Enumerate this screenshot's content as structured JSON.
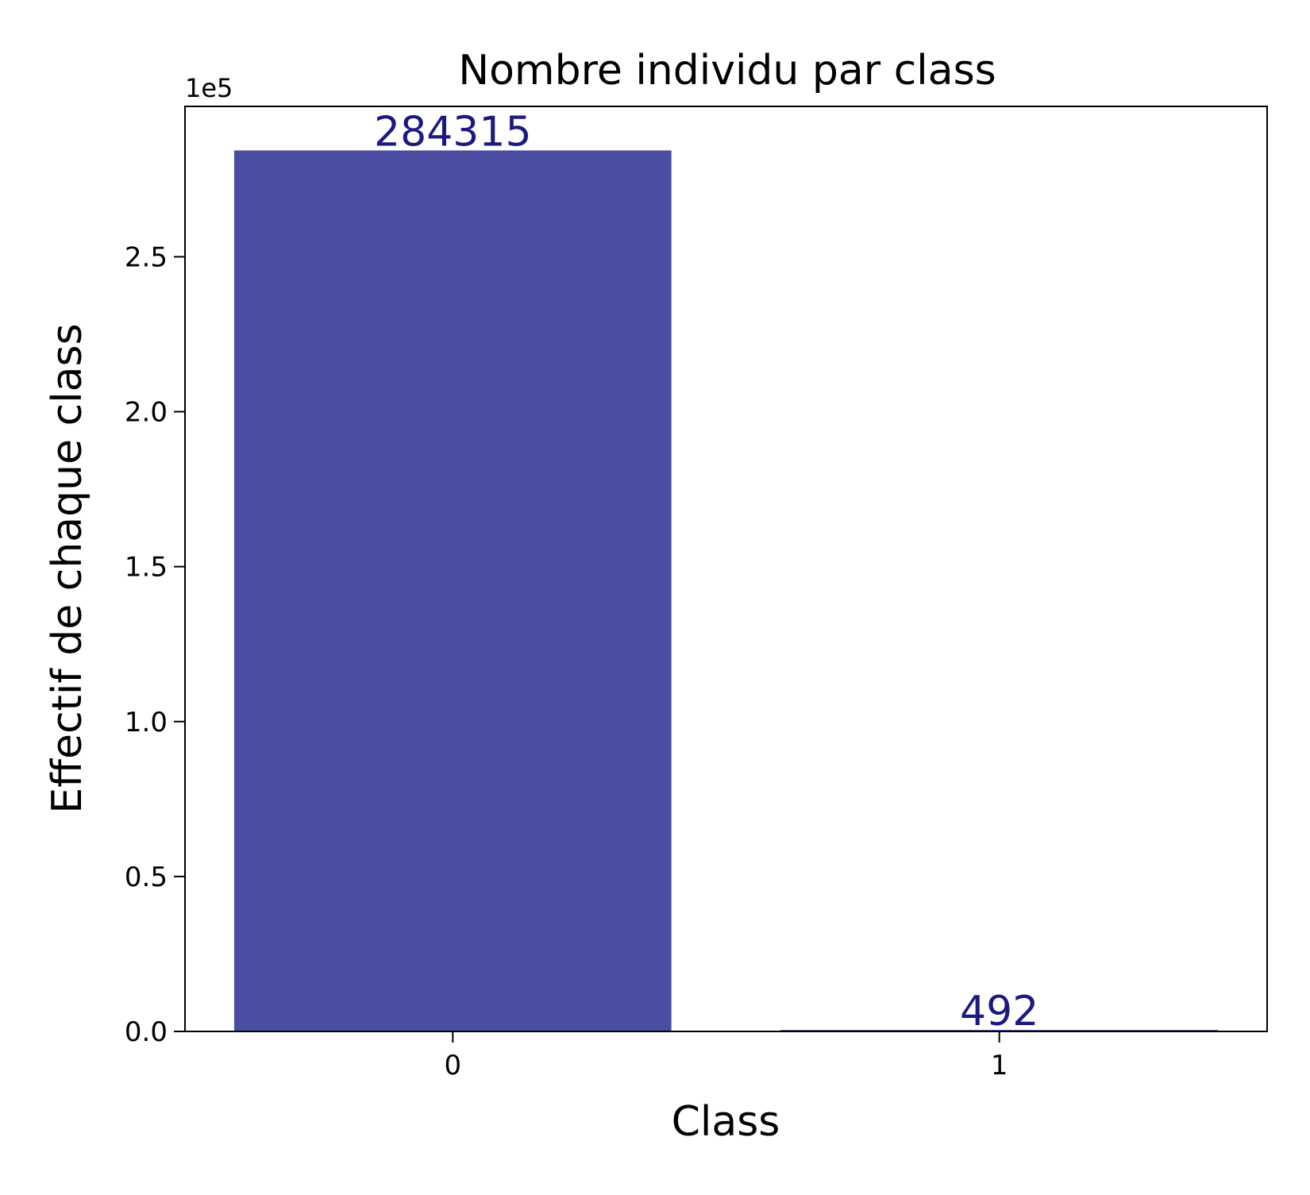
{
  "chart_data": {
    "type": "bar",
    "title": "Nombre individu par class",
    "xlabel": "Class",
    "ylabel": "Effectif de chaque class",
    "categories": [
      "0",
      "1"
    ],
    "values": [
      284315,
      492
    ],
    "data_labels": [
      "284315",
      "492"
    ],
    "y_offset_label": "1e5",
    "yticks": [
      0.0,
      0.5,
      1.0,
      1.5,
      2.0,
      2.5
    ],
    "ytick_labels": [
      "0.0",
      "0.5",
      "1.0",
      "1.5",
      "2.0",
      "2.5"
    ],
    "ylim": [
      0,
      298530.75
    ],
    "grid": false,
    "bar_color": "#4b4da3",
    "label_color": "#1a1a80"
  }
}
